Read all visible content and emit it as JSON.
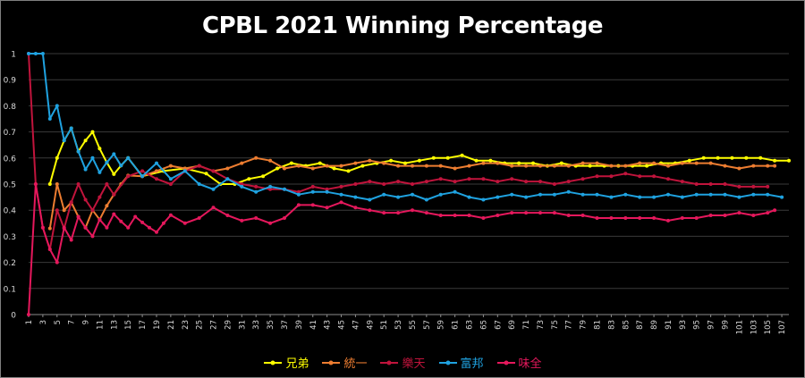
{
  "chart_data": {
    "type": "line",
    "title": "CPBL 2021 Winning Percentage",
    "xlabel": "",
    "ylabel": "",
    "ylim": [
      0,
      1
    ],
    "y_ticks": [
      "0",
      "0.1",
      "0.2",
      "0.3",
      "0.4",
      "0.5",
      "0.6",
      "0.7",
      "0.8",
      "0.9",
      "1"
    ],
    "x_ticks": [
      "1",
      "3",
      "5",
      "7",
      "9",
      "11",
      "13",
      "15",
      "17",
      "19",
      "21",
      "23",
      "25",
      "27",
      "29",
      "31",
      "33",
      "35",
      "37",
      "39",
      "41",
      "43",
      "45",
      "47",
      "49",
      "51",
      "53",
      "55",
      "57",
      "59",
      "61",
      "63",
      "65",
      "67",
      "69",
      "71",
      "73",
      "75",
      "77",
      "79",
      "81",
      "83",
      "85",
      "87",
      "89",
      "91",
      "93",
      "95",
      "97",
      "99",
      "101",
      "103",
      "105",
      "107"
    ],
    "x_range": [
      1,
      108
    ],
    "grid": "horizontal",
    "legend_position": "bottom",
    "series": [
      {
        "name": "兄弟",
        "color": "#ffff00",
        "points": [
          [
            4,
            0.5
          ],
          [
            5,
            0.6
          ],
          [
            6,
            0.667
          ],
          [
            7,
            0.714
          ],
          [
            8,
            0.625
          ],
          [
            9,
            0.667
          ],
          [
            10,
            0.7
          ],
          [
            11,
            0.636
          ],
          [
            12,
            0.583
          ],
          [
            13,
            0.538
          ],
          [
            14,
            0.571
          ],
          [
            15,
            0.6
          ],
          [
            17,
            0.53
          ],
          [
            20,
            0.55
          ],
          [
            23,
            0.56
          ],
          [
            26,
            0.54
          ],
          [
            28,
            0.5
          ],
          [
            30,
            0.5
          ],
          [
            32,
            0.52
          ],
          [
            34,
            0.53
          ],
          [
            36,
            0.56
          ],
          [
            38,
            0.58
          ],
          [
            40,
            0.57
          ],
          [
            42,
            0.58
          ],
          [
            44,
            0.56
          ],
          [
            46,
            0.55
          ],
          [
            48,
            0.57
          ],
          [
            50,
            0.58
          ],
          [
            52,
            0.59
          ],
          [
            54,
            0.58
          ],
          [
            56,
            0.59
          ],
          [
            58,
            0.6
          ],
          [
            60,
            0.6
          ],
          [
            62,
            0.61
          ],
          [
            64,
            0.59
          ],
          [
            66,
            0.59
          ],
          [
            68,
            0.58
          ],
          [
            70,
            0.58
          ],
          [
            72,
            0.58
          ],
          [
            74,
            0.57
          ],
          [
            76,
            0.58
          ],
          [
            78,
            0.57
          ],
          [
            80,
            0.57
          ],
          [
            82,
            0.57
          ],
          [
            84,
            0.57
          ],
          [
            86,
            0.57
          ],
          [
            88,
            0.57
          ],
          [
            90,
            0.58
          ],
          [
            92,
            0.58
          ],
          [
            94,
            0.59
          ],
          [
            96,
            0.6
          ],
          [
            98,
            0.6
          ],
          [
            100,
            0.6
          ],
          [
            102,
            0.6
          ],
          [
            104,
            0.6
          ],
          [
            106,
            0.59
          ],
          [
            108,
            0.59
          ]
        ]
      },
      {
        "name": "統一",
        "color": "#ed7d31",
        "points": [
          [
            4,
            0.33
          ],
          [
            5,
            0.5
          ],
          [
            6,
            0.4
          ],
          [
            7,
            0.43
          ],
          [
            8,
            0.375
          ],
          [
            9,
            0.333
          ],
          [
            10,
            0.4
          ],
          [
            11,
            0.364
          ],
          [
            12,
            0.417
          ],
          [
            13,
            0.46
          ],
          [
            14,
            0.5
          ],
          [
            15,
            0.533
          ],
          [
            17,
            0.53
          ],
          [
            19,
            0.55
          ],
          [
            21,
            0.57
          ],
          [
            23,
            0.56
          ],
          [
            25,
            0.57
          ],
          [
            27,
            0.55
          ],
          [
            29,
            0.56
          ],
          [
            31,
            0.58
          ],
          [
            33,
            0.6
          ],
          [
            35,
            0.59
          ],
          [
            37,
            0.56
          ],
          [
            39,
            0.57
          ],
          [
            41,
            0.56
          ],
          [
            43,
            0.57
          ],
          [
            45,
            0.57
          ],
          [
            47,
            0.58
          ],
          [
            49,
            0.59
          ],
          [
            51,
            0.58
          ],
          [
            53,
            0.57
          ],
          [
            55,
            0.57
          ],
          [
            57,
            0.57
          ],
          [
            59,
            0.57
          ],
          [
            61,
            0.56
          ],
          [
            63,
            0.57
          ],
          [
            65,
            0.58
          ],
          [
            67,
            0.58
          ],
          [
            69,
            0.57
          ],
          [
            71,
            0.57
          ],
          [
            73,
            0.57
          ],
          [
            75,
            0.57
          ],
          [
            77,
            0.57
          ],
          [
            79,
            0.58
          ],
          [
            81,
            0.58
          ],
          [
            83,
            0.57
          ],
          [
            85,
            0.57
          ],
          [
            87,
            0.58
          ],
          [
            89,
            0.58
          ],
          [
            91,
            0.57
          ],
          [
            93,
            0.58
          ],
          [
            95,
            0.58
          ],
          [
            97,
            0.58
          ],
          [
            99,
            0.57
          ],
          [
            101,
            0.56
          ],
          [
            103,
            0.57
          ],
          [
            105,
            0.57
          ],
          [
            106,
            0.57
          ]
        ]
      },
      {
        "name": "樂天",
        "color": "#c0143c",
        "points": [
          [
            1,
            1
          ],
          [
            2,
            0.5
          ],
          [
            3,
            0.333
          ],
          [
            4,
            0.25
          ],
          [
            5,
            0.4
          ],
          [
            6,
            0.33
          ],
          [
            7,
            0.43
          ],
          [
            8,
            0.5
          ],
          [
            9,
            0.44
          ],
          [
            10,
            0.4
          ],
          [
            11,
            0.45
          ],
          [
            12,
            0.5
          ],
          [
            13,
            0.46
          ],
          [
            15,
            0.53
          ],
          [
            17,
            0.55
          ],
          [
            19,
            0.52
          ],
          [
            21,
            0.5
          ],
          [
            23,
            0.55
          ],
          [
            25,
            0.57
          ],
          [
            27,
            0.55
          ],
          [
            29,
            0.52
          ],
          [
            31,
            0.5
          ],
          [
            33,
            0.49
          ],
          [
            35,
            0.48
          ],
          [
            37,
            0.48
          ],
          [
            39,
            0.47
          ],
          [
            41,
            0.49
          ],
          [
            43,
            0.48
          ],
          [
            45,
            0.49
          ],
          [
            47,
            0.5
          ],
          [
            49,
            0.51
          ],
          [
            51,
            0.5
          ],
          [
            53,
            0.51
          ],
          [
            55,
            0.5
          ],
          [
            57,
            0.51
          ],
          [
            59,
            0.52
          ],
          [
            61,
            0.51
          ],
          [
            63,
            0.52
          ],
          [
            65,
            0.52
          ],
          [
            67,
            0.51
          ],
          [
            69,
            0.52
          ],
          [
            71,
            0.51
          ],
          [
            73,
            0.51
          ],
          [
            75,
            0.5
          ],
          [
            77,
            0.51
          ],
          [
            79,
            0.52
          ],
          [
            81,
            0.53
          ],
          [
            83,
            0.53
          ],
          [
            85,
            0.54
          ],
          [
            87,
            0.53
          ],
          [
            89,
            0.53
          ],
          [
            91,
            0.52
          ],
          [
            93,
            0.51
          ],
          [
            95,
            0.5
          ],
          [
            97,
            0.5
          ],
          [
            99,
            0.5
          ],
          [
            101,
            0.49
          ],
          [
            103,
            0.49
          ],
          [
            105,
            0.49
          ]
        ]
      },
      {
        "name": "富邦",
        "color": "#1fa2e0",
        "points": [
          [
            1,
            1
          ],
          [
            2,
            1
          ],
          [
            3,
            1
          ],
          [
            4,
            0.75
          ],
          [
            5,
            0.8
          ],
          [
            6,
            0.667
          ],
          [
            7,
            0.714
          ],
          [
            8,
            0.625
          ],
          [
            9,
            0.556
          ],
          [
            10,
            0.6
          ],
          [
            11,
            0.545
          ],
          [
            12,
            0.583
          ],
          [
            13,
            0.615
          ],
          [
            14,
            0.571
          ],
          [
            15,
            0.6
          ],
          [
            17,
            0.53
          ],
          [
            19,
            0.58
          ],
          [
            21,
            0.52
          ],
          [
            23,
            0.55
          ],
          [
            25,
            0.5
          ],
          [
            27,
            0.48
          ],
          [
            29,
            0.52
          ],
          [
            31,
            0.49
          ],
          [
            33,
            0.47
          ],
          [
            35,
            0.49
          ],
          [
            37,
            0.48
          ],
          [
            39,
            0.46
          ],
          [
            41,
            0.47
          ],
          [
            43,
            0.47
          ],
          [
            45,
            0.46
          ],
          [
            47,
            0.45
          ],
          [
            49,
            0.44
          ],
          [
            51,
            0.46
          ],
          [
            53,
            0.45
          ],
          [
            55,
            0.46
          ],
          [
            57,
            0.44
          ],
          [
            59,
            0.46
          ],
          [
            61,
            0.47
          ],
          [
            63,
            0.45
          ],
          [
            65,
            0.44
          ],
          [
            67,
            0.45
          ],
          [
            69,
            0.46
          ],
          [
            71,
            0.45
          ],
          [
            73,
            0.46
          ],
          [
            75,
            0.46
          ],
          [
            77,
            0.47
          ],
          [
            79,
            0.46
          ],
          [
            81,
            0.46
          ],
          [
            83,
            0.45
          ],
          [
            85,
            0.46
          ],
          [
            87,
            0.45
          ],
          [
            89,
            0.45
          ],
          [
            91,
            0.46
          ],
          [
            93,
            0.45
          ],
          [
            95,
            0.46
          ],
          [
            97,
            0.46
          ],
          [
            99,
            0.46
          ],
          [
            101,
            0.45
          ],
          [
            103,
            0.46
          ],
          [
            105,
            0.46
          ],
          [
            107,
            0.45
          ]
        ]
      },
      {
        "name": "味全",
        "color": "#e5185c",
        "points": [
          [
            1,
            0
          ],
          [
            2,
            0.5
          ],
          [
            3,
            0.333
          ],
          [
            4,
            0.25
          ],
          [
            5,
            0.2
          ],
          [
            6,
            0.333
          ],
          [
            7,
            0.286
          ],
          [
            8,
            0.375
          ],
          [
            9,
            0.333
          ],
          [
            10,
            0.3
          ],
          [
            11,
            0.364
          ],
          [
            12,
            0.333
          ],
          [
            13,
            0.385
          ],
          [
            14,
            0.357
          ],
          [
            15,
            0.333
          ],
          [
            16,
            0.375
          ],
          [
            17,
            0.353
          ],
          [
            18,
            0.333
          ],
          [
            19,
            0.316
          ],
          [
            20,
            0.35
          ],
          [
            21,
            0.381
          ],
          [
            23,
            0.35
          ],
          [
            25,
            0.37
          ],
          [
            27,
            0.41
          ],
          [
            29,
            0.38
          ],
          [
            31,
            0.36
          ],
          [
            33,
            0.37
          ],
          [
            35,
            0.35
          ],
          [
            37,
            0.37
          ],
          [
            39,
            0.42
          ],
          [
            41,
            0.42
          ],
          [
            43,
            0.41
          ],
          [
            45,
            0.43
          ],
          [
            47,
            0.41
          ],
          [
            49,
            0.4
          ],
          [
            51,
            0.39
          ],
          [
            53,
            0.39
          ],
          [
            55,
            0.4
          ],
          [
            57,
            0.39
          ],
          [
            59,
            0.38
          ],
          [
            61,
            0.38
          ],
          [
            63,
            0.38
          ],
          [
            65,
            0.37
          ],
          [
            67,
            0.38
          ],
          [
            69,
            0.39
          ],
          [
            71,
            0.39
          ],
          [
            73,
            0.39
          ],
          [
            75,
            0.39
          ],
          [
            77,
            0.38
          ],
          [
            79,
            0.38
          ],
          [
            81,
            0.37
          ],
          [
            83,
            0.37
          ],
          [
            85,
            0.37
          ],
          [
            87,
            0.37
          ],
          [
            89,
            0.37
          ],
          [
            91,
            0.36
          ],
          [
            93,
            0.37
          ],
          [
            95,
            0.37
          ],
          [
            97,
            0.38
          ],
          [
            99,
            0.38
          ],
          [
            101,
            0.39
          ],
          [
            103,
            0.38
          ],
          [
            105,
            0.39
          ],
          [
            106,
            0.4
          ]
        ]
      }
    ]
  }
}
